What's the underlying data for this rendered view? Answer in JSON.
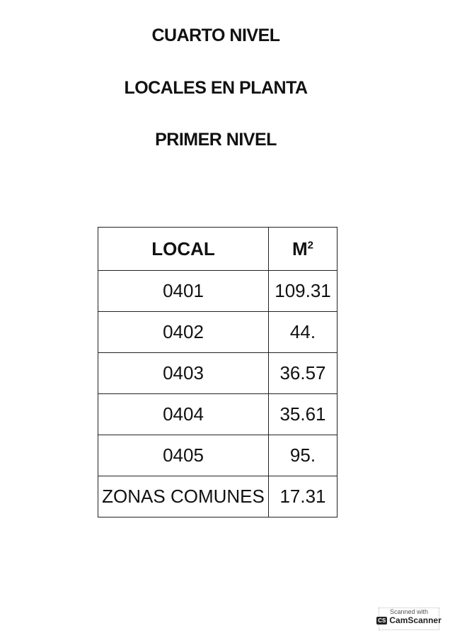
{
  "titles": [
    "CUARTO NIVEL",
    "LOCALES EN PLANTA",
    "PRIMER NIVEL"
  ],
  "table": {
    "headers": [
      "LOCAL",
      "M",
      "2"
    ],
    "rows": [
      [
        "0401",
        "109.31"
      ],
      [
        "0402",
        "44."
      ],
      [
        "0403",
        "36.57"
      ],
      [
        "0404",
        "35.61"
      ],
      [
        "0405",
        "95."
      ],
      [
        "ZONAS COMUNES",
        "17.31"
      ]
    ]
  },
  "watermark": {
    "line1": "Scanned with",
    "logo": "CS",
    "brand": "CamScanner"
  }
}
